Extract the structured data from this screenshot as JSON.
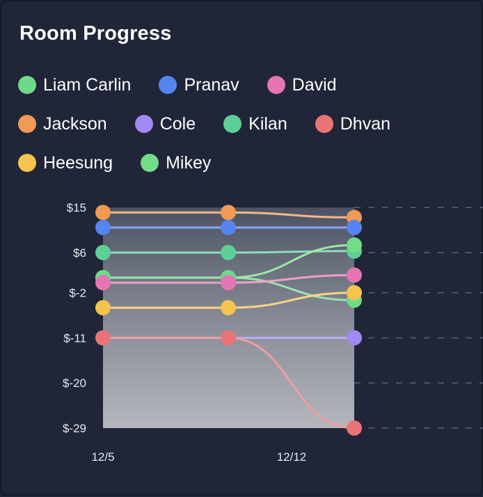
{
  "title": "Room Progress",
  "legend": [
    [
      {
        "name": "Liam Carlin",
        "color": "#6fd98a"
      },
      {
        "name": "Pranav",
        "color": "#5584f0"
      },
      {
        "name": "David",
        "color": "#e576b3"
      }
    ],
    [
      {
        "name": "Jackson",
        "color": "#ef9a55"
      },
      {
        "name": "Cole",
        "color": "#a18af2"
      },
      {
        "name": "Kilan",
        "color": "#5fcf98"
      },
      {
        "name": "Dhvan",
        "color": "#e97476"
      }
    ],
    [
      {
        "name": "Heesung",
        "color": "#f5c34e"
      },
      {
        "name": "Mikey",
        "color": "#72dc86"
      }
    ]
  ],
  "chart_data": {
    "type": "line",
    "x": [
      "12/5",
      "",
      "12/12"
    ],
    "xtick_labels": [
      "12/5",
      "12/12"
    ],
    "ylim": [
      -29,
      15
    ],
    "yticks": [
      "$15",
      "$6",
      "$-2",
      "$-11",
      "$-20",
      "$-29"
    ],
    "ytick_values": [
      15,
      6,
      -2,
      -11,
      -20,
      -29
    ],
    "grid": "dashed horizontal",
    "series": [
      {
        "name": "Jackson",
        "color": "#ef9a55",
        "values": [
          14,
          14,
          13
        ]
      },
      {
        "name": "Pranav",
        "color": "#5584f0",
        "values": [
          11,
          11,
          11
        ]
      },
      {
        "name": "Kilan",
        "color": "#5fcf98",
        "values": [
          6,
          6,
          6.3
        ]
      },
      {
        "name": "Mikey",
        "color": "#72dc86",
        "values": [
          1,
          1,
          7.5
        ]
      },
      {
        "name": "Liam Carlin",
        "color": "#6fd98a",
        "values": [
          1,
          1,
          -3.5
        ]
      },
      {
        "name": "David",
        "color": "#e576b3",
        "values": [
          0,
          0,
          1.5
        ]
      },
      {
        "name": "Heesung",
        "color": "#f5c34e",
        "values": [
          -5,
          -5,
          -2
        ]
      },
      {
        "name": "Cole",
        "color": "#a18af2",
        "values": [
          -11,
          -11,
          -11
        ]
      },
      {
        "name": "Dhvan",
        "color": "#e97476",
        "values": [
          -11,
          -11,
          -29
        ]
      }
    ]
  }
}
